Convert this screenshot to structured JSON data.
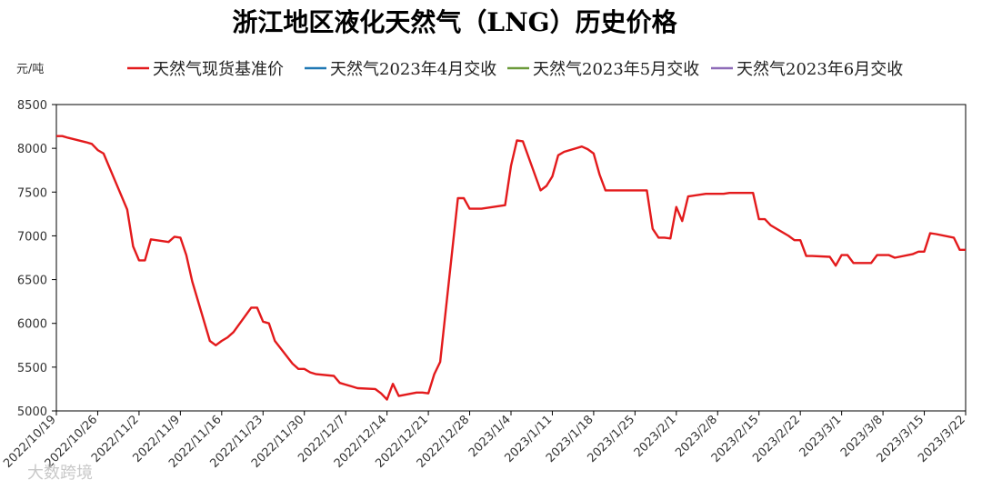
{
  "chart_data": {
    "type": "line",
    "title": "浙江地区液化天然气（LNG）历史价格",
    "unit_label": "元/吨",
    "ylim": [
      5000,
      8500
    ],
    "yticks": [
      5000,
      5500,
      6000,
      6500,
      7000,
      7500,
      8000,
      8500
    ],
    "xlim": [
      "2022-10-19",
      "2023-03-22"
    ],
    "xticks": [
      {
        "date": "2022-10-19",
        "label": "2022/10/19"
      },
      {
        "date": "2022-10-26",
        "label": "2022/10/26"
      },
      {
        "date": "2022-11-02",
        "label": "2022/11/2"
      },
      {
        "date": "2022-11-09",
        "label": "2022/11/9"
      },
      {
        "date": "2022-11-16",
        "label": "2022/11/16"
      },
      {
        "date": "2022-11-23",
        "label": "2022/11/23"
      },
      {
        "date": "2022-11-30",
        "label": "2022/11/30"
      },
      {
        "date": "2022-12-07",
        "label": "2022/12/7"
      },
      {
        "date": "2022-12-14",
        "label": "2022/12/14"
      },
      {
        "date": "2022-12-21",
        "label": "2022/12/21"
      },
      {
        "date": "2022-12-28",
        "label": "2022/12/28"
      },
      {
        "date": "2023-01-04",
        "label": "2023/1/4"
      },
      {
        "date": "2023-01-11",
        "label": "2023/1/11"
      },
      {
        "date": "2023-01-18",
        "label": "2023/1/18"
      },
      {
        "date": "2023-01-25",
        "label": "2023/1/25"
      },
      {
        "date": "2023-02-01",
        "label": "2023/2/1"
      },
      {
        "date": "2023-02-08",
        "label": "2023/2/8"
      },
      {
        "date": "2023-02-15",
        "label": "2023/2/15"
      },
      {
        "date": "2023-02-22",
        "label": "2023/2/22"
      },
      {
        "date": "2023-03-01",
        "label": "2023/3/1"
      },
      {
        "date": "2023-03-08",
        "label": "2023/3/8"
      },
      {
        "date": "2023-03-15",
        "label": "2023/3/15"
      },
      {
        "date": "2023-03-22",
        "label": "2023/3/22"
      }
    ],
    "legend_position": "top",
    "grid": false,
    "series": [
      {
        "name": "天然气现货基准价",
        "color": "#e31a1c",
        "points": [
          [
            "2022-10-19",
            8140
          ],
          [
            "2022-10-20",
            8140
          ],
          [
            "2022-10-21",
            8120
          ],
          [
            "2022-10-24",
            8070
          ],
          [
            "2022-10-25",
            8050
          ],
          [
            "2022-10-26",
            7980
          ],
          [
            "2022-10-27",
            7940
          ],
          [
            "2022-10-31",
            7300
          ],
          [
            "2022-11-01",
            6880
          ],
          [
            "2022-11-02",
            6720
          ],
          [
            "2022-11-03",
            6720
          ],
          [
            "2022-11-04",
            6960
          ],
          [
            "2022-11-07",
            6930
          ],
          [
            "2022-11-08",
            6990
          ],
          [
            "2022-11-09",
            6980
          ],
          [
            "2022-11-10",
            6780
          ],
          [
            "2022-11-11",
            6480
          ],
          [
            "2022-11-14",
            5800
          ],
          [
            "2022-11-15",
            5750
          ],
          [
            "2022-11-16",
            5800
          ],
          [
            "2022-11-17",
            5840
          ],
          [
            "2022-11-18",
            5900
          ],
          [
            "2022-11-21",
            6180
          ],
          [
            "2022-11-22",
            6180
          ],
          [
            "2022-11-23",
            6020
          ],
          [
            "2022-11-24",
            6000
          ],
          [
            "2022-11-25",
            5800
          ],
          [
            "2022-11-28",
            5540
          ],
          [
            "2022-11-29",
            5480
          ],
          [
            "2022-11-30",
            5480
          ],
          [
            "2022-12-01",
            5440
          ],
          [
            "2022-12-02",
            5420
          ],
          [
            "2022-12-05",
            5400
          ],
          [
            "2022-12-06",
            5320
          ],
          [
            "2022-12-07",
            5300
          ],
          [
            "2022-12-08",
            5280
          ],
          [
            "2022-12-09",
            5260
          ],
          [
            "2022-12-12",
            5250
          ],
          [
            "2022-12-13",
            5200
          ],
          [
            "2022-12-14",
            5130
          ],
          [
            "2022-12-15",
            5310
          ],
          [
            "2022-12-16",
            5170
          ],
          [
            "2022-12-19",
            5210
          ],
          [
            "2022-12-20",
            5210
          ],
          [
            "2022-12-21",
            5200
          ],
          [
            "2022-12-22",
            5420
          ],
          [
            "2022-12-23",
            5560
          ],
          [
            "2022-12-26",
            7430
          ],
          [
            "2022-12-27",
            7430
          ],
          [
            "2022-12-28",
            7310
          ],
          [
            "2022-12-29",
            7310
          ],
          [
            "2022-12-30",
            7310
          ],
          [
            "2023-01-03",
            7350
          ],
          [
            "2023-01-04",
            7800
          ],
          [
            "2023-01-05",
            8090
          ],
          [
            "2023-01-06",
            8080
          ],
          [
            "2023-01-09",
            7520
          ],
          [
            "2023-01-10",
            7570
          ],
          [
            "2023-01-11",
            7680
          ],
          [
            "2023-01-12",
            7920
          ],
          [
            "2023-01-13",
            7960
          ],
          [
            "2023-01-16",
            8020
          ],
          [
            "2023-01-17",
            7990
          ],
          [
            "2023-01-18",
            7940
          ],
          [
            "2023-01-19",
            7700
          ],
          [
            "2023-01-20",
            7520
          ],
          [
            "2023-01-27",
            7520
          ],
          [
            "2023-01-28",
            7080
          ],
          [
            "2023-01-29",
            6980
          ],
          [
            "2023-01-30",
            6980
          ],
          [
            "2023-01-31",
            6970
          ],
          [
            "2023-02-01",
            7330
          ],
          [
            "2023-02-02",
            7170
          ],
          [
            "2023-02-03",
            7450
          ],
          [
            "2023-02-06",
            7480
          ],
          [
            "2023-02-07",
            7480
          ],
          [
            "2023-02-08",
            7480
          ],
          [
            "2023-02-09",
            7480
          ],
          [
            "2023-02-10",
            7490
          ],
          [
            "2023-02-13",
            7490
          ],
          [
            "2023-02-14",
            7490
          ],
          [
            "2023-02-15",
            7190
          ],
          [
            "2023-02-16",
            7190
          ],
          [
            "2023-02-17",
            7120
          ],
          [
            "2023-02-20",
            7000
          ],
          [
            "2023-02-21",
            6950
          ],
          [
            "2023-02-22",
            6950
          ],
          [
            "2023-02-23",
            6770
          ],
          [
            "2023-02-24",
            6770
          ],
          [
            "2023-02-27",
            6760
          ],
          [
            "2023-02-28",
            6660
          ],
          [
            "2023-03-01",
            6780
          ],
          [
            "2023-03-02",
            6780
          ],
          [
            "2023-03-03",
            6690
          ],
          [
            "2023-03-06",
            6690
          ],
          [
            "2023-03-07",
            6780
          ],
          [
            "2023-03-08",
            6780
          ],
          [
            "2023-03-09",
            6780
          ],
          [
            "2023-03-10",
            6750
          ],
          [
            "2023-03-13",
            6790
          ],
          [
            "2023-03-14",
            6820
          ],
          [
            "2023-03-15",
            6820
          ],
          [
            "2023-03-16",
            7030
          ],
          [
            "2023-03-17",
            7020
          ],
          [
            "2023-03-20",
            6980
          ],
          [
            "2023-03-21",
            6840
          ],
          [
            "2023-03-22",
            6840
          ]
        ]
      },
      {
        "name": "天然气2023年4月交收",
        "color": "#1f78b4",
        "points": []
      },
      {
        "name": "天然气2023年5月交收",
        "color": "#6b9a3a",
        "points": []
      },
      {
        "name": "天然气2023年6月交收",
        "color": "#8e6bb8",
        "points": []
      }
    ]
  },
  "watermark": "大数跨境"
}
